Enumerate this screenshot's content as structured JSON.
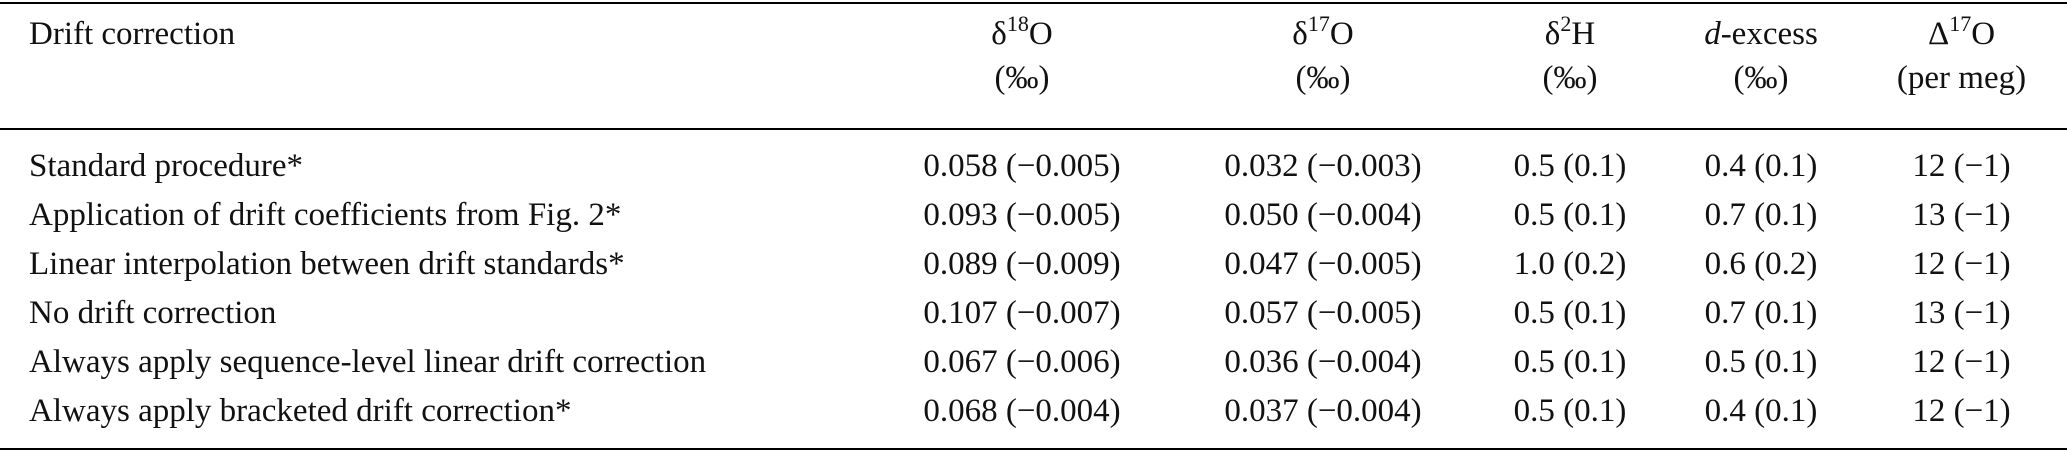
{
  "table": {
    "header": {
      "first": "Drift correction",
      "columns": [
        {
          "parts": [
            "δ",
            "18",
            "O"
          ],
          "unit": "(‰)"
        },
        {
          "parts": [
            "δ",
            "17",
            "O"
          ],
          "unit": "(‰)"
        },
        {
          "parts": [
            "δ",
            "2",
            "H"
          ],
          "unit": "(‰)"
        },
        {
          "parts": [
            "d",
            "-excess"
          ],
          "unit": "(‰)"
        },
        {
          "parts": [
            "Δ",
            "17",
            "O"
          ],
          "unit": "(per meg)"
        }
      ]
    },
    "rows": [
      [
        "Standard procedure*",
        "0.058 (−0.005)",
        "0.032 (−0.003)",
        "0.5 (0.1)",
        "0.4 (0.1)",
        "12 (−1)"
      ],
      [
        "Application of drift coefficients from Fig. 2*",
        "0.093 (−0.005)",
        "0.050 (−0.004)",
        "0.5 (0.1)",
        "0.7 (0.1)",
        "13 (−1)"
      ],
      [
        "Linear interpolation between drift standards*",
        "0.089 (−0.009)",
        "0.047 (−0.005)",
        "1.0 (0.2)",
        "0.6 (0.2)",
        "12 (−1)"
      ],
      [
        "No drift correction",
        "0.107 (−0.007)",
        "0.057 (−0.005)",
        "0.5 (0.1)",
        "0.7 (0.1)",
        "13 (−1)"
      ],
      [
        "Always apply sequence-level linear drift correction",
        "0.067 (−0.006)",
        "0.036 (−0.004)",
        "0.5 (0.1)",
        "0.5 (0.1)",
        "12 (−1)"
      ],
      [
        "Always apply bracketed drift correction*",
        "0.068 (−0.004)",
        "0.037 (−0.004)",
        "0.5 (0.1)",
        "0.4 (0.1)",
        "12 (−1)"
      ]
    ]
  }
}
